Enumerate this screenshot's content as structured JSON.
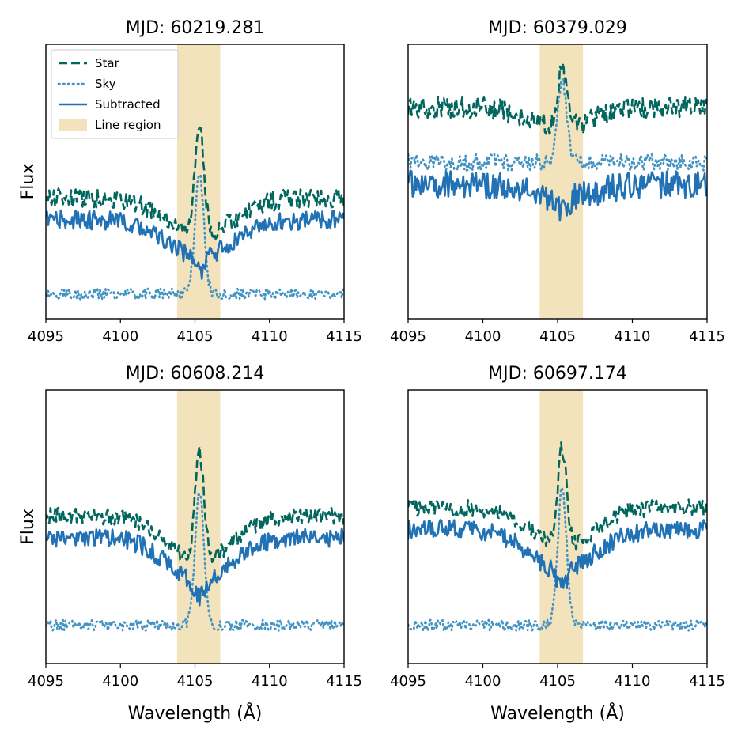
{
  "chart_data": [
    {
      "type": "line",
      "title": "MJD: 60219.281",
      "xlabel": "",
      "ylabel": "Flux",
      "xlim": [
        4095,
        4115
      ],
      "ylim": [
        0,
        1
      ],
      "xticks": [
        "4095",
        "4100",
        "4105",
        "4110",
        "4115"
      ],
      "shaded_region": {
        "name": "Line region",
        "x0": 4103.8,
        "x1": 4106.7
      },
      "series": [
        {
          "name": "Star",
          "style": "dashed",
          "color": "#01665e",
          "base": 0.44,
          "dip_depth": 0.13,
          "dip_width": 3.2,
          "peak": 0.84,
          "noise": 0.035
        },
        {
          "name": "Sky",
          "style": "dotted",
          "color": "#4393c3",
          "base": 0.09,
          "dip_depth": 0.0,
          "dip_width": 1,
          "peak": 0.53,
          "noise": 0.02
        },
        {
          "name": "Subtracted",
          "style": "solid",
          "color": "#2171b5",
          "base": 0.36,
          "dip_depth": 0.13,
          "dip_width": 3.2,
          "peak": 0.1,
          "noise": 0.035
        }
      ]
    },
    {
      "type": "line",
      "title": "MJD: 60379.029",
      "xlabel": "",
      "ylabel": "",
      "xlim": [
        4095,
        4115
      ],
      "ylim": [
        0,
        1
      ],
      "xticks": [
        "4095",
        "4100",
        "4105",
        "4110",
        "4115"
      ],
      "shaded_region": {
        "name": "Line region",
        "x0": 4103.8,
        "x1": 4106.7
      },
      "series": [
        {
          "name": "Star",
          "style": "dashed",
          "color": "#01665e",
          "base": 0.77,
          "dip_depth": 0.07,
          "dip_width": 3.0,
          "peak": 0.98,
          "noise": 0.04
        },
        {
          "name": "Sky",
          "style": "dotted",
          "color": "#4393c3",
          "base": 0.57,
          "dip_depth": 0.0,
          "dip_width": 1,
          "peak": 0.87,
          "noise": 0.03
        },
        {
          "name": "Subtracted",
          "style": "solid",
          "color": "#2171b5",
          "base": 0.49,
          "dip_depth": 0.05,
          "dip_width": 3.0,
          "peak": 0.05,
          "noise": 0.05
        }
      ]
    },
    {
      "type": "line",
      "title": "MJD: 60608.214",
      "xlabel": "Wavelength (Å)",
      "ylabel": "Flux",
      "xlim": [
        4095,
        4115
      ],
      "ylim": [
        0,
        1
      ],
      "xticks": [
        "4095",
        "4100",
        "4105",
        "4110",
        "4115"
      ],
      "shaded_region": {
        "name": "Line region",
        "x0": 4103.8,
        "x1": 4106.7
      },
      "series": [
        {
          "name": "Star",
          "style": "dashed",
          "color": "#01665e",
          "base": 0.54,
          "dip_depth": 0.16,
          "dip_width": 3.0,
          "peak": 0.93,
          "noise": 0.03
        },
        {
          "name": "Sky",
          "style": "dotted",
          "color": "#4393c3",
          "base": 0.14,
          "dip_depth": 0.0,
          "dip_width": 1,
          "peak": 0.63,
          "noise": 0.02
        },
        {
          "name": "Subtracted",
          "style": "solid",
          "color": "#2171b5",
          "base": 0.46,
          "dip_depth": 0.16,
          "dip_width": 3.0,
          "peak": 0.08,
          "noise": 0.035
        }
      ]
    },
    {
      "type": "line",
      "title": "MJD: 60697.174",
      "xlabel": "Wavelength (Å)",
      "ylabel": "",
      "xlim": [
        4095,
        4115
      ],
      "ylim": [
        0,
        1
      ],
      "xticks": [
        "4095",
        "4100",
        "4105",
        "4110",
        "4115"
      ],
      "shaded_region": {
        "name": "Line region",
        "x0": 4103.8,
        "x1": 4106.7
      },
      "series": [
        {
          "name": "Star",
          "style": "dashed",
          "color": "#01665e",
          "base": 0.57,
          "dip_depth": 0.14,
          "dip_width": 3.0,
          "peak": 0.93,
          "noise": 0.03
        },
        {
          "name": "Sky",
          "style": "dotted",
          "color": "#4393c3",
          "base": 0.14,
          "dip_depth": 0.0,
          "dip_width": 1,
          "peak": 0.64,
          "noise": 0.02
        },
        {
          "name": "Subtracted",
          "style": "solid",
          "color": "#2171b5",
          "base": 0.49,
          "dip_depth": 0.15,
          "dip_width": 3.0,
          "peak": 0.08,
          "noise": 0.035
        }
      ]
    }
  ],
  "legend": {
    "location": "upper-left of first panel",
    "entries": [
      {
        "label": "Star",
        "style": "dashed",
        "color": "#01665e"
      },
      {
        "label": "Sky",
        "style": "dotted",
        "color": "#4393c3"
      },
      {
        "label": "Subtracted",
        "style": "solid",
        "color": "#2171b5"
      },
      {
        "label": "Line region",
        "style": "patch",
        "color": "#f3e3bc"
      }
    ]
  },
  "colors": {
    "region": "#f3e3bc",
    "axes": "#000000"
  },
  "line_center": 4105.3
}
